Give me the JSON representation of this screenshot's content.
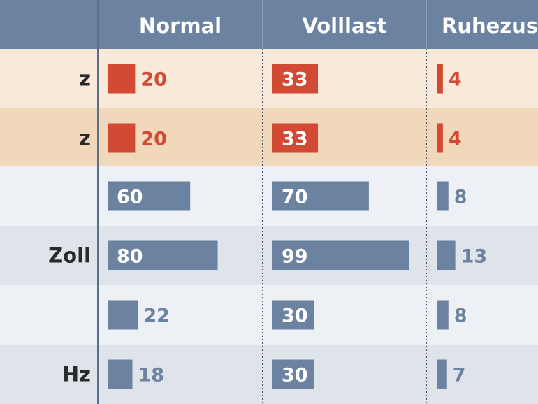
{
  "chart_data": {
    "type": "bar",
    "columns": [
      "Normal",
      "Volllast",
      "Ruhezust"
    ],
    "rows": [
      {
        "label": "z",
        "values": [
          20,
          33,
          4
        ],
        "highlight": true
      },
      {
        "label": "z",
        "values": [
          20,
          33,
          4
        ],
        "highlight": true
      },
      {
        "label": "",
        "values": [
          60,
          70,
          8
        ],
        "highlight": false
      },
      {
        "label": "Zoll",
        "values": [
          80,
          99,
          13
        ],
        "highlight": false
      },
      {
        "label": "",
        "values": [
          22,
          30,
          8
        ],
        "highlight": false
      },
      {
        "label": "Hz",
        "values": [
          18,
          30,
          7
        ],
        "highlight": false
      }
    ],
    "colors": {
      "header_bg": "#6b82a0",
      "highlight_bar": "#d24a33",
      "normal_bar": "#6b82a0",
      "highlight_row_light": "#f8e9d8",
      "highlight_row_dark": "#f2d8bb",
      "normal_row_light": "#edf0f4",
      "normal_row_dark": "#dfe4ea"
    }
  }
}
